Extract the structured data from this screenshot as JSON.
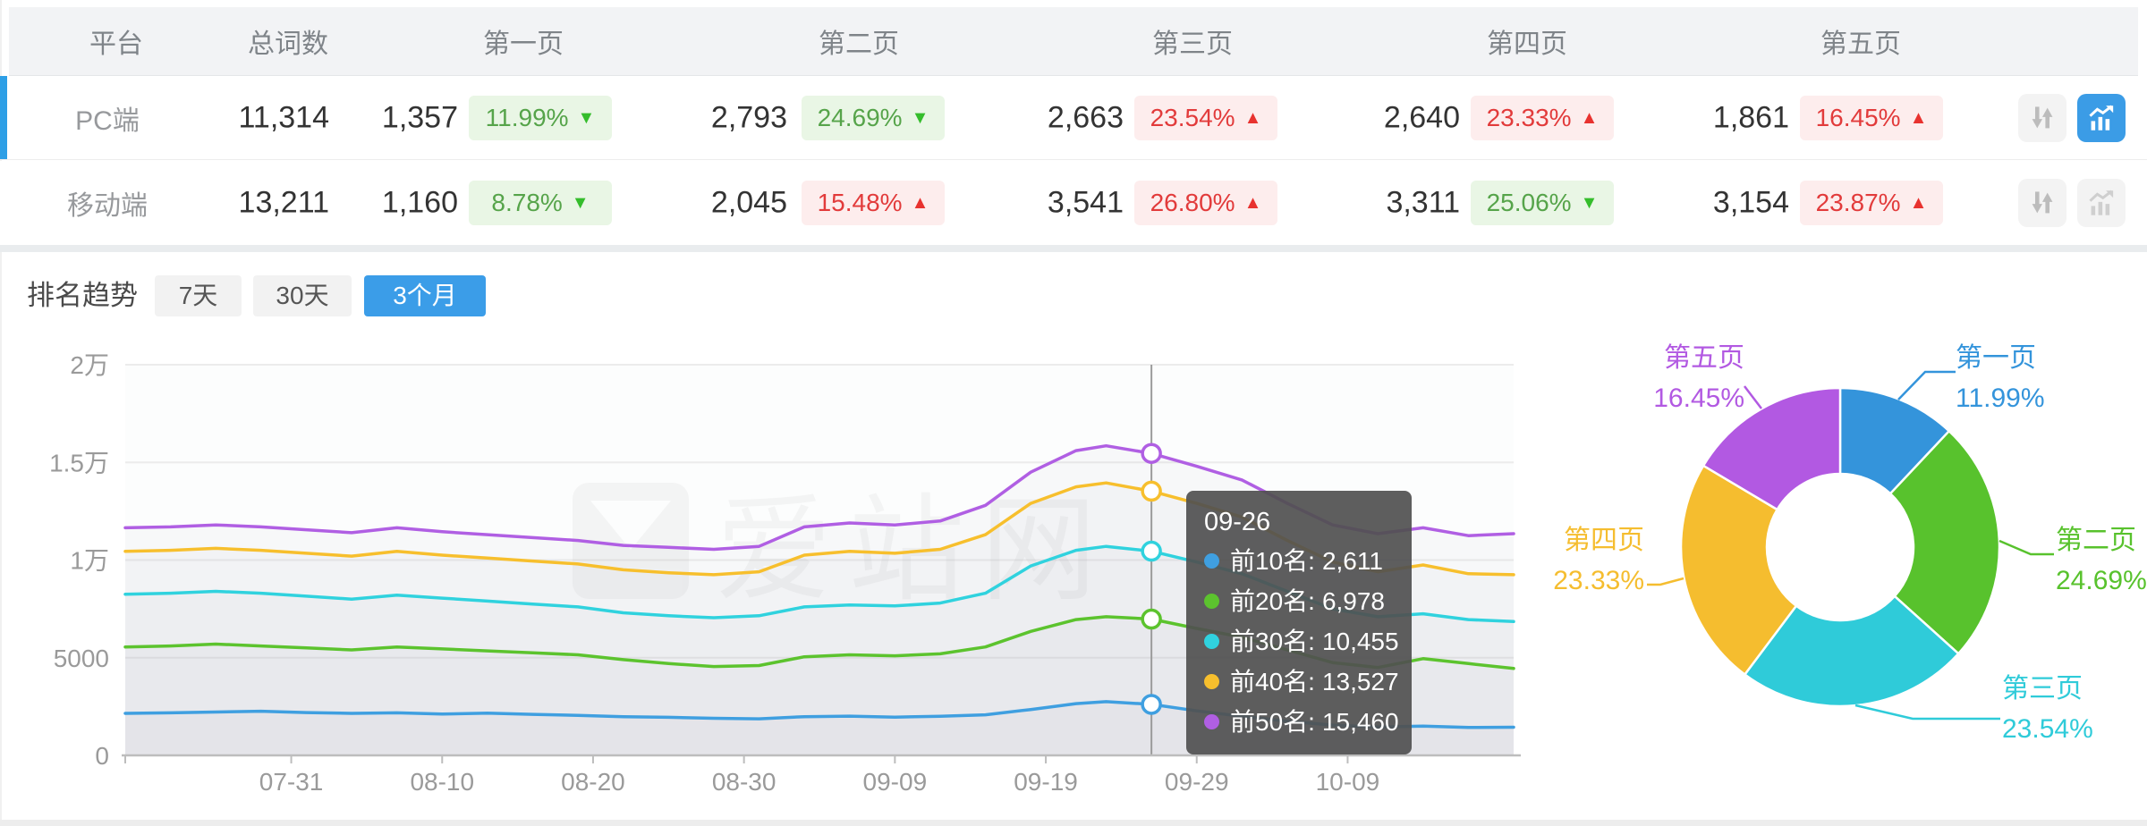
{
  "table": {
    "columns": [
      "平台",
      "总词数",
      "第一页",
      "第二页",
      "第三页",
      "第四页",
      "第五页"
    ],
    "rows": [
      {
        "platform": "PC端",
        "total": "11,314",
        "selected": true,
        "chart_active": true,
        "pages": [
          {
            "count": "1,357",
            "pct": "11.99%",
            "dir": "down",
            "trend": "good"
          },
          {
            "count": "2,793",
            "pct": "24.69%",
            "dir": "down",
            "trend": "good"
          },
          {
            "count": "2,663",
            "pct": "23.54%",
            "dir": "up",
            "trend": "bad"
          },
          {
            "count": "2,640",
            "pct": "23.33%",
            "dir": "up",
            "trend": "bad"
          },
          {
            "count": "1,861",
            "pct": "16.45%",
            "dir": "up",
            "trend": "bad"
          }
        ]
      },
      {
        "platform": "移动端",
        "total": "13,211",
        "selected": false,
        "chart_active": false,
        "pages": [
          {
            "count": "1,160",
            "pct": "8.78%",
            "dir": "down",
            "trend": "good"
          },
          {
            "count": "2,045",
            "pct": "15.48%",
            "dir": "up",
            "trend": "bad"
          },
          {
            "count": "3,541",
            "pct": "26.80%",
            "dir": "up",
            "trend": "bad"
          },
          {
            "count": "3,311",
            "pct": "25.06%",
            "dir": "down",
            "trend": "good"
          },
          {
            "count": "3,154",
            "pct": "23.87%",
            "dir": "up",
            "trend": "bad"
          }
        ]
      }
    ]
  },
  "trend": {
    "label": "排名趋势",
    "tabs": [
      {
        "label": "7天",
        "active": false
      },
      {
        "label": "30天",
        "active": false
      },
      {
        "label": "3个月",
        "active": true
      }
    ]
  },
  "tooltip": {
    "date": "09-26",
    "items": [
      {
        "label": "前10名:",
        "value": "2,611",
        "color": "#3f9fe0"
      },
      {
        "label": "前20名:",
        "value": "6,978",
        "color": "#5cc32e"
      },
      {
        "label": "前30名:",
        "value": "10,455",
        "color": "#30d2de"
      },
      {
        "label": "前40名:",
        "value": "13,527",
        "color": "#f7bf2d"
      },
      {
        "label": "前50名:",
        "value": "15,460",
        "color": "#b05fe3"
      }
    ]
  },
  "watermark": "爱站网",
  "colors": {
    "accent_blue": "#2d9fe6",
    "badge_green_bg": "#e9f6e5",
    "badge_green_text": "#56a44a",
    "badge_red_bg": "#fdeded",
    "badge_red_text": "#e23b3b"
  },
  "chart_data": [
    {
      "type": "line",
      "title": "排名趋势 (3个月)",
      "grid": true,
      "legend_position": "none",
      "x_axis": {
        "domain_days": [
          0,
          92
        ],
        "ticks": [
          {
            "label": "07-31",
            "day": 11
          },
          {
            "label": "08-10",
            "day": 21
          },
          {
            "label": "08-20",
            "day": 31
          },
          {
            "label": "08-30",
            "day": 41
          },
          {
            "label": "09-09",
            "day": 51
          },
          {
            "label": "09-19",
            "day": 61
          },
          {
            "label": "09-29",
            "day": 71
          },
          {
            "label": "10-09",
            "day": 81
          }
        ]
      },
      "y_axis": {
        "range": [
          0,
          20000
        ],
        "ticks": [
          {
            "label": "0",
            "value": 0
          },
          {
            "label": "5000",
            "value": 5000
          },
          {
            "label": "1万",
            "value": 10000
          },
          {
            "label": "1.5万",
            "value": 15000
          },
          {
            "label": "2万",
            "value": 20000
          }
        ]
      },
      "crosshair": {
        "date": "09-26",
        "day": 68,
        "values": [
          2611,
          6978,
          10455,
          13527,
          15460
        ]
      },
      "series": [
        {
          "name": "前10名",
          "color": "#3f9fe0",
          "points": [
            [
              0,
              2150
            ],
            [
              3,
              2180
            ],
            [
              6,
              2220
            ],
            [
              9,
              2260
            ],
            [
              12,
              2190
            ],
            [
              15,
              2150
            ],
            [
              18,
              2180
            ],
            [
              21,
              2120
            ],
            [
              24,
              2160
            ],
            [
              27,
              2100
            ],
            [
              30,
              2050
            ],
            [
              33,
              1980
            ],
            [
              36,
              1950
            ],
            [
              39,
              1900
            ],
            [
              42,
              1870
            ],
            [
              45,
              1980
            ],
            [
              48,
              2010
            ],
            [
              51,
              1960
            ],
            [
              54,
              2000
            ],
            [
              57,
              2080
            ],
            [
              60,
              2350
            ],
            [
              63,
              2650
            ],
            [
              65,
              2750
            ],
            [
              68,
              2611
            ],
            [
              71,
              2280
            ],
            [
              74,
              2000
            ],
            [
              77,
              1750
            ],
            [
              80,
              1550
            ],
            [
              83,
              1450
            ],
            [
              86,
              1500
            ],
            [
              89,
              1430
            ],
            [
              92,
              1440
            ]
          ]
        },
        {
          "name": "前20名",
          "color": "#5cc32e",
          "points": [
            [
              0,
              5550
            ],
            [
              3,
              5600
            ],
            [
              6,
              5700
            ],
            [
              9,
              5600
            ],
            [
              12,
              5500
            ],
            [
              15,
              5400
            ],
            [
              18,
              5550
            ],
            [
              21,
              5450
            ],
            [
              24,
              5350
            ],
            [
              27,
              5250
            ],
            [
              30,
              5150
            ],
            [
              33,
              4900
            ],
            [
              36,
              4700
            ],
            [
              39,
              4550
            ],
            [
              42,
              4600
            ],
            [
              45,
              5050
            ],
            [
              48,
              5150
            ],
            [
              51,
              5100
            ],
            [
              54,
              5200
            ],
            [
              57,
              5550
            ],
            [
              60,
              6350
            ],
            [
              63,
              6950
            ],
            [
              65,
              7100
            ],
            [
              68,
              6978
            ],
            [
              71,
              6500
            ],
            [
              74,
              6050
            ],
            [
              77,
              5400
            ],
            [
              80,
              4750
            ],
            [
              83,
              4500
            ],
            [
              86,
              4950
            ],
            [
              89,
              4700
            ],
            [
              92,
              4450
            ]
          ]
        },
        {
          "name": "前30名",
          "color": "#30d2de",
          "points": [
            [
              0,
              8250
            ],
            [
              3,
              8300
            ],
            [
              6,
              8400
            ],
            [
              9,
              8300
            ],
            [
              12,
              8150
            ],
            [
              15,
              8000
            ],
            [
              18,
              8200
            ],
            [
              21,
              8050
            ],
            [
              24,
              7900
            ],
            [
              27,
              7750
            ],
            [
              30,
              7600
            ],
            [
              33,
              7300
            ],
            [
              36,
              7150
            ],
            [
              39,
              7050
            ],
            [
              42,
              7150
            ],
            [
              45,
              7600
            ],
            [
              48,
              7700
            ],
            [
              51,
              7650
            ],
            [
              54,
              7800
            ],
            [
              57,
              8300
            ],
            [
              60,
              9700
            ],
            [
              63,
              10500
            ],
            [
              65,
              10700
            ],
            [
              68,
              10455
            ],
            [
              71,
              9900
            ],
            [
              74,
              9300
            ],
            [
              77,
              8400
            ],
            [
              80,
              7500
            ],
            [
              83,
              7100
            ],
            [
              86,
              7250
            ],
            [
              89,
              6950
            ],
            [
              92,
              6850
            ]
          ]
        },
        {
          "name": "前40名",
          "color": "#f7bf2d",
          "points": [
            [
              0,
              10450
            ],
            [
              3,
              10500
            ],
            [
              6,
              10600
            ],
            [
              9,
              10500
            ],
            [
              12,
              10350
            ],
            [
              15,
              10200
            ],
            [
              18,
              10450
            ],
            [
              21,
              10250
            ],
            [
              24,
              10100
            ],
            [
              27,
              9950
            ],
            [
              30,
              9800
            ],
            [
              33,
              9500
            ],
            [
              36,
              9350
            ],
            [
              39,
              9250
            ],
            [
              42,
              9400
            ],
            [
              45,
              10250
            ],
            [
              48,
              10450
            ],
            [
              51,
              10350
            ],
            [
              54,
              10550
            ],
            [
              57,
              11300
            ],
            [
              60,
              12900
            ],
            [
              63,
              13750
            ],
            [
              65,
              13950
            ],
            [
              68,
              13527
            ],
            [
              71,
              12900
            ],
            [
              74,
              12200
            ],
            [
              77,
              11000
            ],
            [
              80,
              9900
            ],
            [
              83,
              9400
            ],
            [
              86,
              9750
            ],
            [
              89,
              9300
            ],
            [
              92,
              9250
            ]
          ]
        },
        {
          "name": "前50名",
          "color": "#b05fe3",
          "points": [
            [
              0,
              11650
            ],
            [
              3,
              11700
            ],
            [
              6,
              11800
            ],
            [
              9,
              11700
            ],
            [
              12,
              11550
            ],
            [
              15,
              11400
            ],
            [
              18,
              11650
            ],
            [
              21,
              11450
            ],
            [
              24,
              11300
            ],
            [
              27,
              11150
            ],
            [
              30,
              11000
            ],
            [
              33,
              10750
            ],
            [
              36,
              10650
            ],
            [
              39,
              10550
            ],
            [
              42,
              10700
            ],
            [
              45,
              11700
            ],
            [
              48,
              11900
            ],
            [
              51,
              11800
            ],
            [
              54,
              12000
            ],
            [
              57,
              12800
            ],
            [
              60,
              14500
            ],
            [
              63,
              15600
            ],
            [
              65,
              15850
            ],
            [
              68,
              15460
            ],
            [
              71,
              14800
            ],
            [
              74,
              14100
            ],
            [
              77,
              12900
            ],
            [
              80,
              11800
            ],
            [
              83,
              11350
            ],
            [
              86,
              11650
            ],
            [
              89,
              11250
            ],
            [
              92,
              11350
            ]
          ]
        }
      ]
    },
    {
      "type": "donut",
      "slices": [
        {
          "label": "第一页",
          "pct_label": "11.99%",
          "value": 11.99,
          "color": "#3494db"
        },
        {
          "label": "第二页",
          "pct_label": "24.69%",
          "value": 24.69,
          "color": "#58c22d"
        },
        {
          "label": "第三页",
          "pct_label": "23.54%",
          "value": 23.54,
          "color": "#2fcbd9"
        },
        {
          "label": "第四页",
          "pct_label": "23.33%",
          "value": 23.33,
          "color": "#f5bd2f"
        },
        {
          "label": "第五页",
          "pct_label": "16.45%",
          "value": 16.45,
          "color": "#b259e2"
        }
      ]
    }
  ]
}
